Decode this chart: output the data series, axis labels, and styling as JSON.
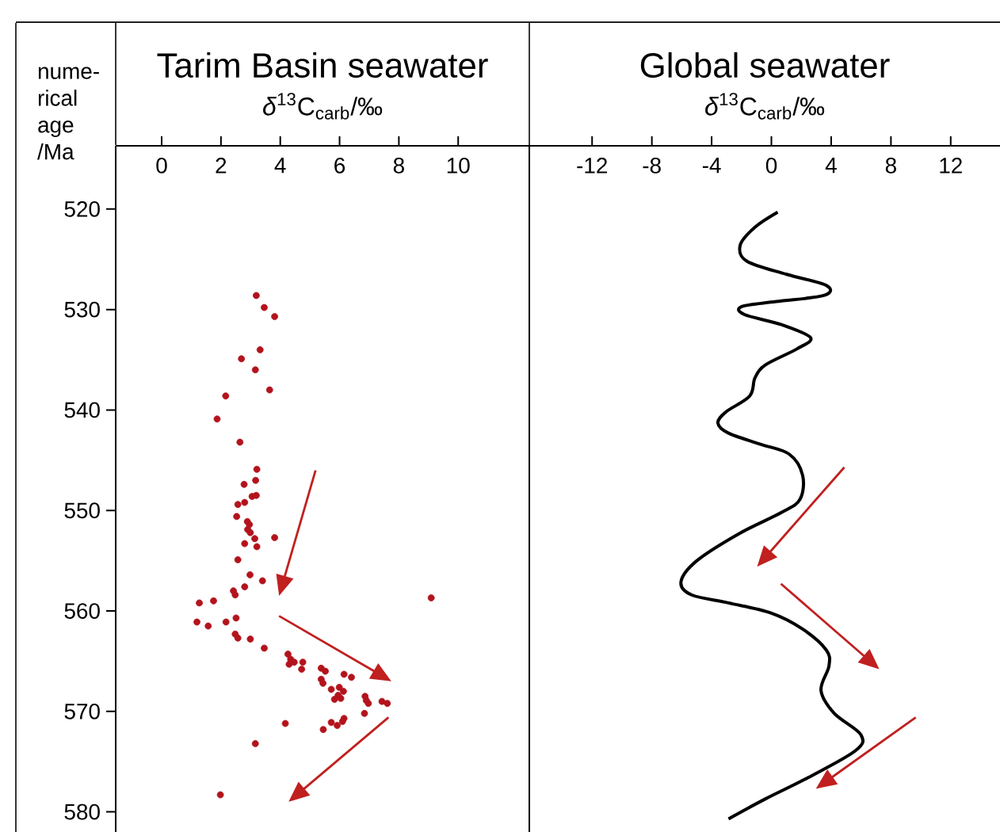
{
  "chart_data": [
    {
      "type": "scatter",
      "title": "Tarim Basin seawater",
      "xlabel": "*δ*$^{13}$C$_{carb}$/‰",
      "ylabel": "nume-rical age /Ma",
      "color": "#b3131c",
      "marker": "circle",
      "x": [
        3.19,
        3.46,
        3.81,
        3.32,
        2.69,
        3.16,
        3.64,
        2.16,
        1.87,
        2.64,
        3.21,
        3.17,
        2.78,
        3.19,
        3.05,
        2.8,
        2.57,
        2.53,
        2.89,
        2.96,
        2.9,
        2.99,
        3.14,
        3.81,
        2.8,
        3.21,
        2.57,
        2.98,
        2.8,
        3.4,
        2.42,
        2.48,
        1.27,
        1.75,
        1.19,
        1.57,
        2.17,
        2.51,
        2.48,
        2.57,
        2.99,
        3.46,
        4.26,
        4.35,
        4.3,
        4.47,
        4.76,
        4.72,
        5.38,
        5.52,
        5.38,
        5.44,
        6.15,
        6.4,
        5.72,
        5.99,
        6.13,
        5.95,
        5.83,
        6.04,
        6.86,
        6.97,
        6.9,
        7.43,
        7.61,
        6.84,
        6.15,
        6.1,
        5.92,
        5.72,
        5.45,
        4.17,
        3.16,
        1.98,
        9.09
      ],
      "values": [
        528.6,
        529.8,
        530.7,
        534.0,
        534.9,
        536.0,
        538.0,
        538.6,
        540.9,
        543.2,
        545.9,
        547.0,
        547.4,
        548.5,
        548.6,
        549.2,
        549.4,
        550.6,
        551.1,
        551.4,
        551.9,
        552.2,
        552.8,
        552.7,
        553.3,
        553.6,
        554.9,
        556.4,
        557.6,
        557.0,
        558.0,
        558.4,
        559.2,
        559.0,
        561.1,
        561.5,
        561.1,
        560.7,
        562.3,
        562.7,
        562.8,
        563.7,
        564.3,
        564.8,
        565.3,
        565.1,
        565.1,
        565.8,
        565.7,
        566.0,
        566.8,
        567.2,
        566.3,
        566.6,
        567.8,
        567.6,
        568.0,
        568.4,
        568.8,
        568.7,
        568.5,
        569.2,
        568.9,
        569.0,
        569.2,
        570.2,
        570.7,
        571.0,
        571.4,
        571.1,
        571.8,
        571.2,
        573.2,
        578.3,
        558.7
      ],
      "xlim": [
        -1.55,
        12.4
      ],
      "xticks": [
        0,
        2,
        4,
        6,
        8,
        10
      ],
      "ylim": [
        582,
        513.7
      ],
      "yticks": [
        520,
        530,
        540,
        550,
        560,
        570,
        580
      ]
    },
    {
      "type": "line",
      "title": "Global seawater",
      "xlabel": "*δ*$^{13}$C$_{carb}$/‰",
      "color": "#000000",
      "tick_labels": "x",
      "x": [
        0.42,
        -1.1,
        -2.09,
        -1.63,
        1.03,
        3.68,
        3.5,
        0.32,
        -1.98,
        -1.8,
        0.67,
        2.62,
        1.73,
        -0.39,
        -1.1,
        -1.45,
        -3.05,
        -3.58,
        -2.87,
        -0.74,
        1.2,
        2.09,
        1.91,
        0.67,
        -2.16,
        -4.99,
        -6.05,
        -5.34,
        -2.87,
        -0.03,
        2.09,
        3.68,
        3.85,
        3.32,
        4.21,
        5.98,
        5.63,
        2.44,
        -0.39,
        -2.87
      ],
      "values": [
        520.3,
        521.8,
        523.6,
        525.2,
        526.5,
        527.6,
        528.6,
        529.2,
        529.7,
        530.5,
        531.5,
        532.8,
        533.9,
        535.5,
        536.8,
        538.6,
        540.2,
        541.3,
        542.3,
        543.4,
        544.4,
        546.5,
        548.9,
        550.2,
        552.3,
        555.0,
        557.1,
        558.4,
        559.2,
        560.2,
        561.8,
        563.9,
        565.5,
        567.9,
        570.2,
        572.3,
        573.9,
        576.6,
        578.7,
        580.7
      ],
      "xlim": [
        -16.2,
        15.3
      ],
      "xticks": [
        -12,
        -8,
        -4,
        0,
        4,
        8,
        12
      ],
      "ylim": [
        582,
        513.7
      ]
    }
  ]
}
